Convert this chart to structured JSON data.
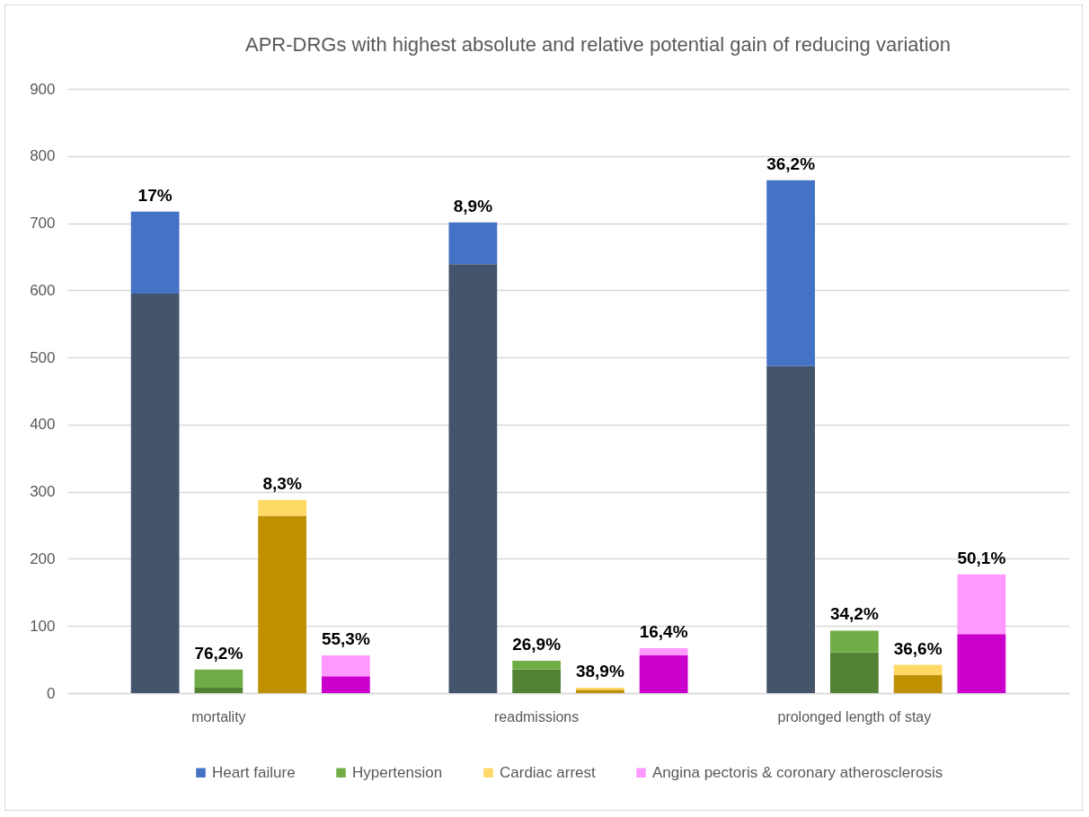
{
  "chart_data": {
    "type": "bar",
    "title": "APR-DRGs with highest absolute and relative potential gain of reducing variation",
    "categories": [
      null,
      "mortality",
      null,
      null,
      null,
      null,
      "readmissions",
      null,
      null,
      null,
      null,
      "prolonged length of stay",
      null,
      null
    ],
    "stacked": true,
    "series": [
      {
        "color": "#44546a",
        "values": [
          595,
          null,
          null,
          null,
          null,
          639,
          null,
          null,
          null,
          null,
          487,
          null,
          null,
          null
        ]
      },
      {
        "color": "#548235",
        "values": [
          null,
          8,
          null,
          null,
          null,
          null,
          35,
          null,
          null,
          null,
          null,
          61,
          null,
          null
        ]
      },
      {
        "color": "#bf9000",
        "values": [
          null,
          null,
          264,
          null,
          null,
          null,
          null,
          5,
          null,
          null,
          null,
          null,
          27,
          null
        ]
      },
      {
        "color": "#cc00cc",
        "values": [
          null,
          null,
          null,
          25,
          null,
          null,
          null,
          null,
          56,
          null,
          null,
          null,
          null,
          88
        ]
      },
      {
        "name": "Heart failure",
        "color": "#4472c4",
        "values": [
          122,
          null,
          null,
          null,
          null,
          62,
          null,
          null,
          null,
          null,
          277,
          null,
          null,
          null
        ]
      },
      {
        "name": "Hypertension",
        "color": "#70ad47",
        "values": [
          null,
          27,
          null,
          null,
          null,
          null,
          13,
          null,
          null,
          null,
          null,
          32,
          null,
          null
        ]
      },
      {
        "name": "Cardiac arrest",
        "color": "#ffd966",
        "values": [
          null,
          null,
          24,
          null,
          null,
          null,
          null,
          3,
          null,
          null,
          null,
          null,
          15,
          null
        ]
      },
      {
        "name": "Angina pectoris & coronary atherosclerosis",
        "color": "#ff99ff",
        "values": [
          null,
          null,
          null,
          31,
          null,
          null,
          null,
          null,
          11,
          null,
          null,
          null,
          null,
          89
        ]
      }
    ],
    "annotations": [
      {
        "text": "17%",
        "y": 717
      },
      {
        "text": "76,2%",
        "y": 35
      },
      {
        "text": "8,3%",
        "y": 288
      },
      {
        "text": "55,3%",
        "y": 56
      },
      {
        "text": "8,9%",
        "y": 701
      },
      {
        "text": "26,9%",
        "y": 48
      },
      {
        "text": "38,9%",
        "y": 8
      },
      {
        "text": "16,4%",
        "y": 67
      },
      {
        "text": "36,2%",
        "y": 764
      },
      {
        "text": "34,2%",
        "y": 93
      },
      {
        "text": "36,6%",
        "y": 42
      },
      {
        "text": "50,1%",
        "y": 177
      }
    ],
    "ylim": [
      0,
      900
    ],
    "yticks": [
      0,
      100,
      200,
      300,
      400,
      500,
      600,
      700,
      800,
      900
    ],
    "grid": "y",
    "legend": "bottom"
  }
}
